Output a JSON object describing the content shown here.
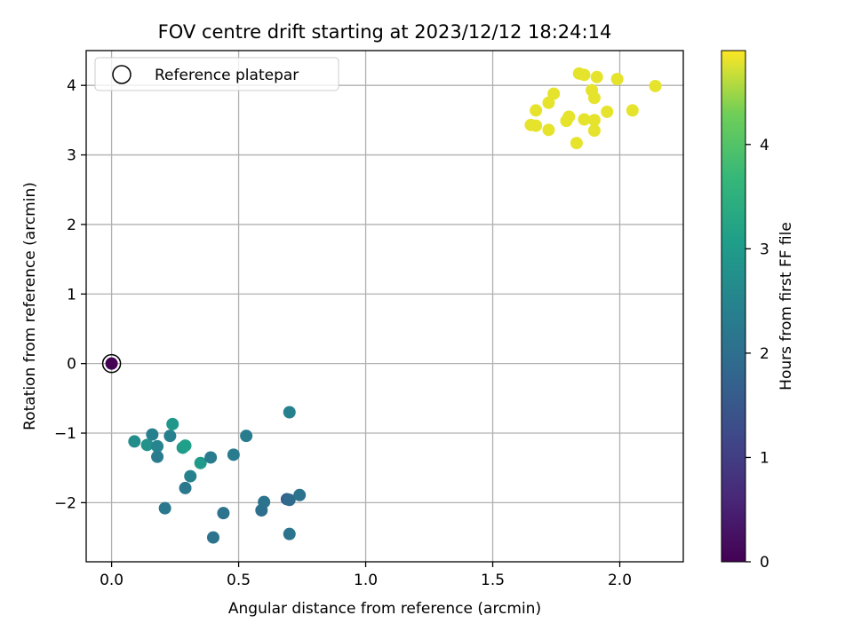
{
  "chart_data": {
    "type": "scatter",
    "title": "FOV centre drift starting at 2023/12/12 18:24:14",
    "xlabel": "Angular distance from reference (arcmin)",
    "ylabel": "Rotation from reference (arcmin)",
    "xlim": [
      -0.1,
      2.25
    ],
    "ylim": [
      -2.85,
      4.5
    ],
    "xticks": [
      0.0,
      0.5,
      1.0,
      1.5,
      2.0
    ],
    "xtick_labels": [
      "0.0",
      "0.5",
      "1.0",
      "1.5",
      "2.0"
    ],
    "yticks": [
      -2,
      -1,
      0,
      1,
      2,
      3,
      4
    ],
    "ytick_labels": [
      "−2",
      "−1",
      "0",
      "1",
      "2",
      "3",
      "4"
    ],
    "grid": true,
    "legend": {
      "placement": "upper-left",
      "entries": [
        "Reference platepar"
      ]
    },
    "colorbar": {
      "label": "Hours from first FF file",
      "range": [
        0,
        4.9
      ],
      "ticks": [
        0,
        1,
        2,
        3,
        4
      ],
      "tick_labels": [
        "0",
        "1",
        "2",
        "3",
        "4"
      ],
      "colormap": "viridis"
    },
    "reference_point": {
      "x": 0.0,
      "y": 0.0,
      "hours": 0.0
    },
    "points": [
      {
        "x": 0.0,
        "y": 0.0,
        "hours": 0.0
      },
      {
        "x": 0.09,
        "y": -1.12,
        "hours": 2.7
      },
      {
        "x": 0.14,
        "y": -1.17,
        "hours": 2.8
      },
      {
        "x": 0.16,
        "y": -1.02,
        "hours": 2.4
      },
      {
        "x": 0.18,
        "y": -1.19,
        "hours": 2.5
      },
      {
        "x": 0.18,
        "y": -1.34,
        "hours": 2.3
      },
      {
        "x": 0.23,
        "y": -1.04,
        "hours": 2.4
      },
      {
        "x": 0.24,
        "y": -0.87,
        "hours": 2.9
      },
      {
        "x": 0.28,
        "y": -1.21,
        "hours": 3.0
      },
      {
        "x": 0.29,
        "y": -1.18,
        "hours": 3.1
      },
      {
        "x": 0.29,
        "y": -1.79,
        "hours": 2.2
      },
      {
        "x": 0.31,
        "y": -1.62,
        "hours": 2.4
      },
      {
        "x": 0.35,
        "y": -1.43,
        "hours": 3.0
      },
      {
        "x": 0.39,
        "y": -1.35,
        "hours": 2.3
      },
      {
        "x": 0.48,
        "y": -1.31,
        "hours": 2.3
      },
      {
        "x": 0.53,
        "y": -1.04,
        "hours": 2.3
      },
      {
        "x": 0.21,
        "y": -2.08,
        "hours": 2.2
      },
      {
        "x": 0.4,
        "y": -2.5,
        "hours": 2.1
      },
      {
        "x": 0.44,
        "y": -2.15,
        "hours": 2.1
      },
      {
        "x": 0.59,
        "y": -2.11,
        "hours": 2.0
      },
      {
        "x": 0.6,
        "y": -1.99,
        "hours": 2.1
      },
      {
        "x": 0.69,
        "y": -1.95,
        "hours": 1.7
      },
      {
        "x": 0.7,
        "y": -1.96,
        "hours": 1.9
      },
      {
        "x": 0.7,
        "y": -0.7,
        "hours": 2.4
      },
      {
        "x": 0.7,
        "y": -2.45,
        "hours": 2.1
      },
      {
        "x": 0.74,
        "y": -1.89,
        "hours": 2.1
      },
      {
        "x": 1.65,
        "y": 3.43,
        "hours": 4.8
      },
      {
        "x": 1.67,
        "y": 3.42,
        "hours": 4.8
      },
      {
        "x": 1.67,
        "y": 3.64,
        "hours": 4.8
      },
      {
        "x": 1.72,
        "y": 3.36,
        "hours": 4.8
      },
      {
        "x": 1.72,
        "y": 3.75,
        "hours": 4.8
      },
      {
        "x": 1.74,
        "y": 3.88,
        "hours": 4.8
      },
      {
        "x": 1.79,
        "y": 3.49,
        "hours": 4.8
      },
      {
        "x": 1.8,
        "y": 3.55,
        "hours": 4.8
      },
      {
        "x": 1.83,
        "y": 3.17,
        "hours": 4.8
      },
      {
        "x": 1.84,
        "y": 4.17,
        "hours": 4.8
      },
      {
        "x": 1.86,
        "y": 4.15,
        "hours": 4.8
      },
      {
        "x": 1.86,
        "y": 3.51,
        "hours": 4.8
      },
      {
        "x": 1.89,
        "y": 3.93,
        "hours": 4.8
      },
      {
        "x": 1.9,
        "y": 3.82,
        "hours": 4.8
      },
      {
        "x": 1.9,
        "y": 3.5,
        "hours": 4.8
      },
      {
        "x": 1.9,
        "y": 3.35,
        "hours": 4.8
      },
      {
        "x": 1.91,
        "y": 4.12,
        "hours": 4.8
      },
      {
        "x": 1.95,
        "y": 3.62,
        "hours": 4.8
      },
      {
        "x": 1.99,
        "y": 4.09,
        "hours": 4.8
      },
      {
        "x": 2.05,
        "y": 3.64,
        "hours": 4.8
      },
      {
        "x": 2.14,
        "y": 3.99,
        "hours": 4.8
      }
    ]
  }
}
